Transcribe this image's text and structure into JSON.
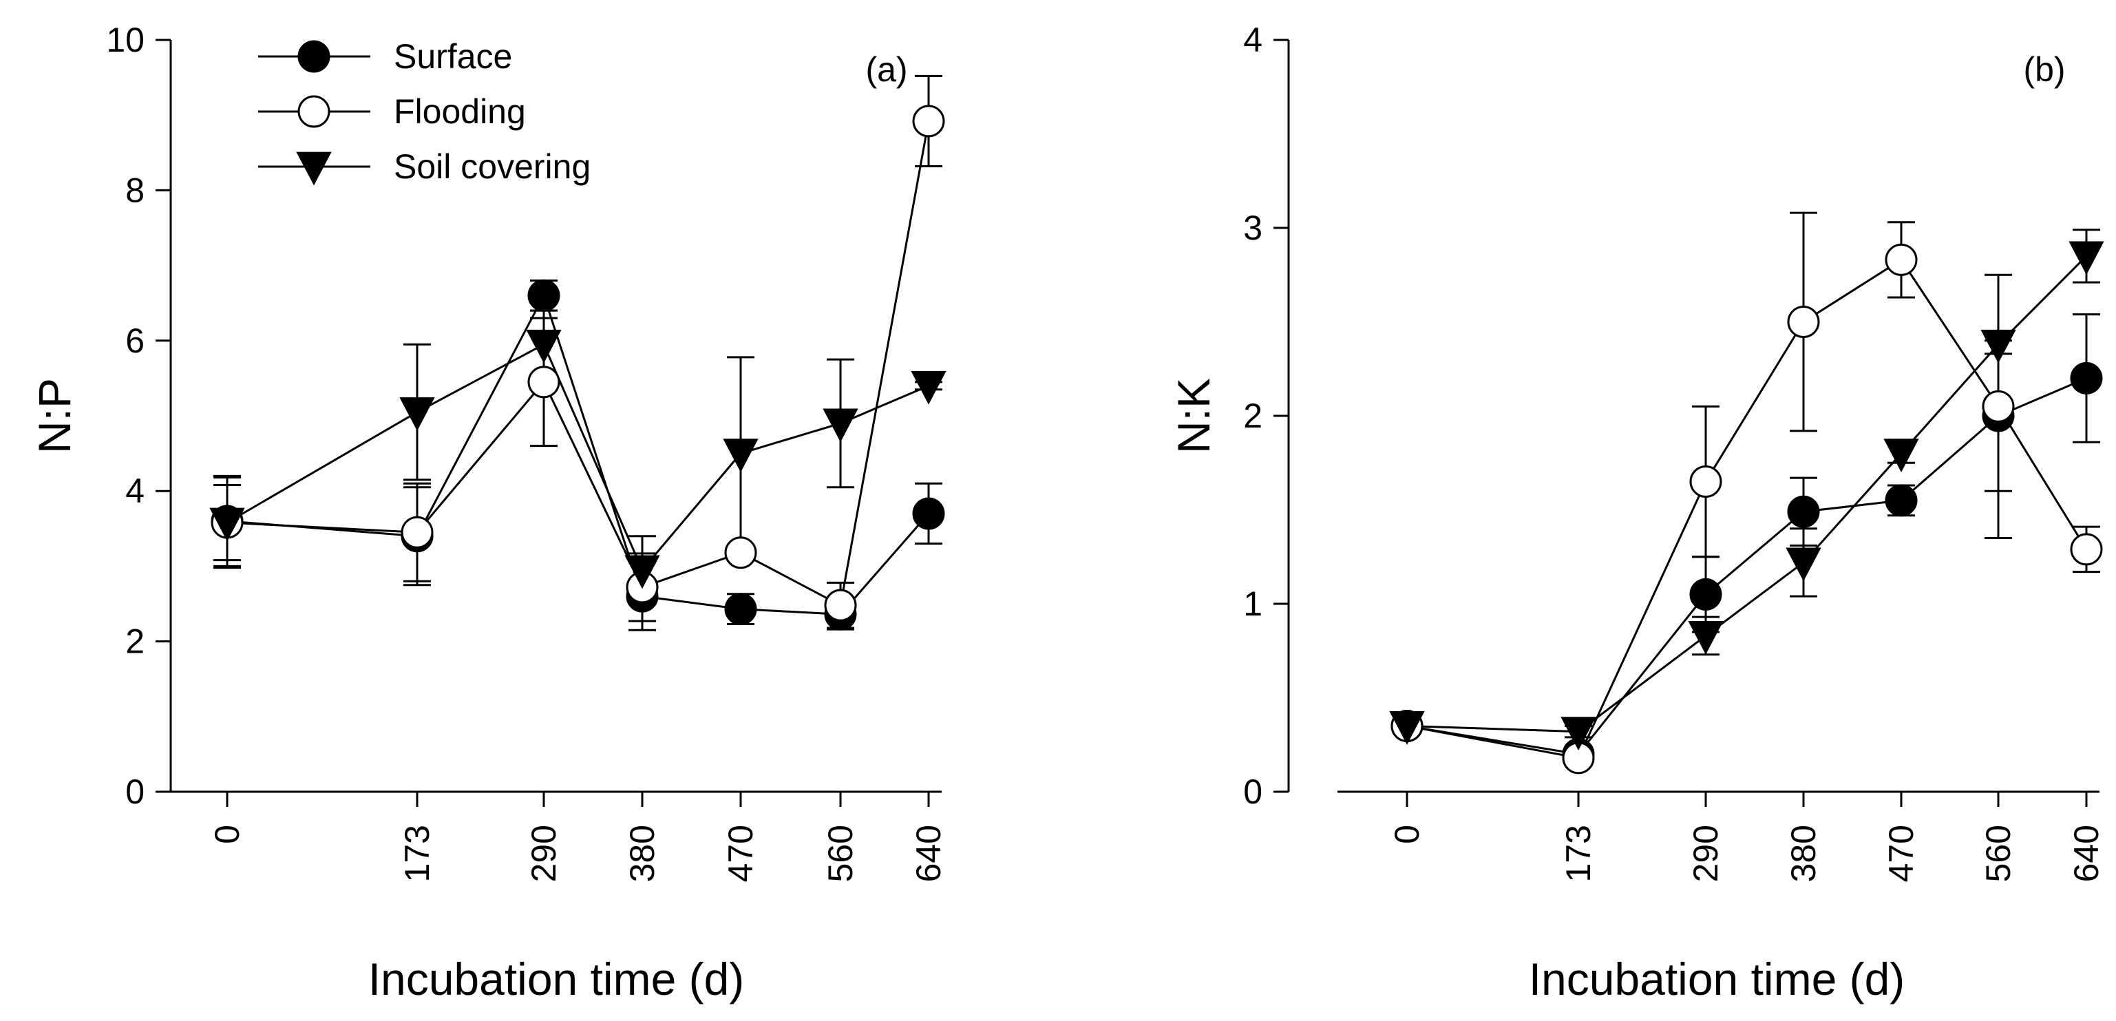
{
  "chart_data": [
    {
      "type": "line",
      "panel_label": "(a)",
      "xlabel": "Incubation time (d)",
      "ylabel": "N:P",
      "ylim": [
        0,
        10
      ],
      "yticks": [
        0,
        2,
        4,
        6,
        8,
        10
      ],
      "x": [
        0,
        173,
        290,
        380,
        470,
        560,
        640
      ],
      "x_tick_labels": [
        "0",
        "173",
        "290",
        "380",
        "470",
        "560",
        "640"
      ],
      "legend_location": "top-left",
      "series": [
        {
          "name": "Surface",
          "marker": "filled-circle",
          "values": [
            3.6,
            3.4,
            6.6,
            2.6,
            2.43,
            2.36,
            3.7
          ],
          "errors": [
            0.6,
            0.65,
            0.2,
            0.45,
            0.2,
            0.2,
            0.4
          ]
        },
        {
          "name": "Flooding",
          "marker": "open-circle",
          "values": [
            3.58,
            3.45,
            5.45,
            2.72,
            3.18,
            2.48,
            8.92
          ],
          "errors": [
            0.6,
            0.65,
            0.85,
            0.45,
            0.1,
            0.3,
            0.6
          ]
        },
        {
          "name": "Soil covering",
          "marker": "filled-triangle-down",
          "values": [
            3.58,
            5.05,
            5.95,
            2.95,
            4.5,
            4.9,
            5.4
          ],
          "errors": [
            0.5,
            0.9,
            0.45,
            0.45,
            1.28,
            0.85,
            0.05
          ]
        }
      ]
    },
    {
      "type": "line",
      "panel_label": "(b)",
      "xlabel": "Incubation time (d)",
      "ylabel": "N:K",
      "ylim": [
        0,
        4
      ],
      "yticks": [
        0,
        1,
        2,
        3,
        4
      ],
      "x": [
        0,
        173,
        290,
        380,
        470,
        560,
        640
      ],
      "x_tick_labels": [
        "0",
        "173",
        "290",
        "380",
        "470",
        "560",
        "640"
      ],
      "legend_location": "none",
      "series": [
        {
          "name": "Surface",
          "marker": "filled-circle",
          "values": [
            0.35,
            0.2,
            1.05,
            1.49,
            1.55,
            2.0,
            2.2
          ],
          "errors": [
            0.03,
            0.03,
            0.2,
            0.18,
            0.08,
            0.4,
            0.34
          ]
        },
        {
          "name": "Flooding",
          "marker": "open-circle",
          "values": [
            0.35,
            0.18,
            1.65,
            2.5,
            2.83,
            2.05,
            1.29
          ],
          "errors": [
            0.03,
            0.03,
            0.4,
            0.58,
            0.2,
            0.7,
            0.12
          ]
        },
        {
          "name": "Soil covering",
          "marker": "filled-triangle-down",
          "values": [
            0.35,
            0.32,
            0.83,
            1.22,
            1.8,
            2.38,
            2.85
          ],
          "errors": [
            0.03,
            0.03,
            0.1,
            0.18,
            0.05,
            0.05,
            0.14
          ]
        }
      ]
    }
  ]
}
